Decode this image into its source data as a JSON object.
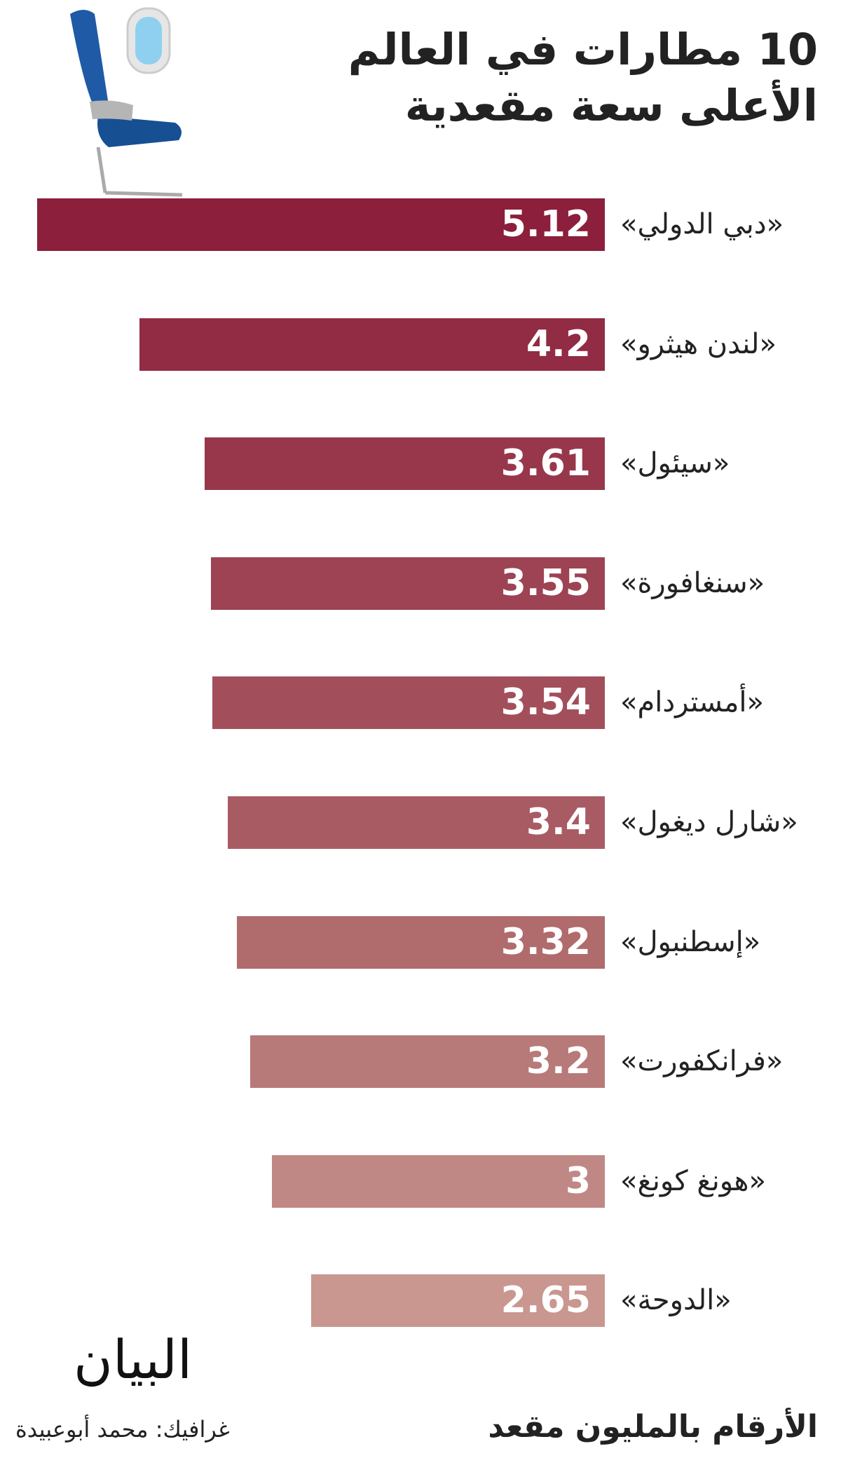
{
  "chart_data": {
    "type": "bar",
    "title": [
      "10 مطارات في العالم",
      "الأعلى سعة مقعدية"
    ],
    "categories": [
      "«دبي الدولي»",
      "«لندن هيثرو»",
      "«سيئول»",
      "«سنغافورة»",
      "«أمستردام»",
      "«شارل ديغول»",
      "«إسطنبول»",
      "«فرانكفورت»",
      "«هونغ كونغ»",
      "«الدوحة»"
    ],
    "values": [
      5.12,
      4.2,
      3.61,
      3.55,
      3.54,
      3.4,
      3.32,
      3.2,
      3,
      2.65
    ],
    "colors": [
      "#8c1f3b",
      "#922b44",
      "#98374c",
      "#9d4353",
      "#a34f5b",
      "#a95b63",
      "#b06b6d",
      "#b77a78",
      "#c08884",
      "#c9978f"
    ],
    "note": "الأرقام بالمليون مقعد",
    "logo": "البيان",
    "credit": "غرافيك: محمد أبوعبيدة"
  }
}
